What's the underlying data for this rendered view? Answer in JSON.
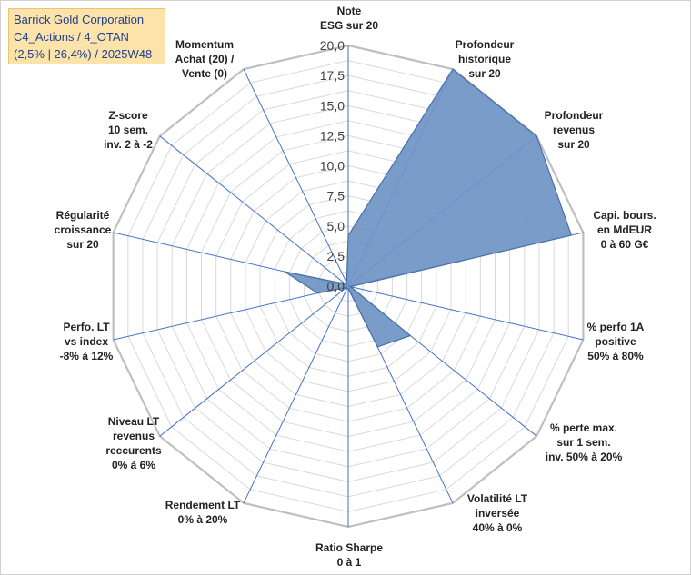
{
  "title_box": {
    "line1": "Barrick Gold Corporation",
    "line2": "C4_Actions / 4_OTAN",
    "line3": "(2,5% | 26,4%) / 2025W48"
  },
  "chart_data": {
    "type": "radar",
    "title": "Barrick Gold Corporation C4_Actions / 4_OTAN (2,5% | 26,4%) / 2025W48",
    "ylim": [
      0,
      20
    ],
    "tick_step": 2.5,
    "tick_labels": [
      "0,0",
      "2,5",
      "5,0",
      "7,5",
      "10,0",
      "12,5",
      "15,0",
      "17,5",
      "20,0"
    ],
    "grid_rings": 16,
    "fill_color": "#6f94c4",
    "line_color": "#4a6fa8",
    "axis_line_color": "#4472c4",
    "grid_color": "#d9d9d9",
    "categories": [
      {
        "line1": "Note",
        "line2": "ESG sur 20",
        "line3": ""
      },
      {
        "line1": "Profondeur",
        "line2": "historique",
        "line3": "sur 20"
      },
      {
        "line1": "Profondeur",
        "line2": "revenus",
        "line3": "sur 20"
      },
      {
        "line1": "Capi. bours.",
        "line2": "en MdEUR",
        "line3": "0 à 60 G€"
      },
      {
        "line1": "% perfo 1A",
        "line2": "positive",
        "line3": "50% à 80%"
      },
      {
        "line1": "% perte max.",
        "line2": "sur 1 sem.",
        "line3": "inv. 50% à 20%"
      },
      {
        "line1": "Volatilité LT",
        "line2": "inversée",
        "line3": "40% à 0%"
      },
      {
        "line1": "Ratio Sharpe",
        "line2": "0 à 1",
        "line3": ""
      },
      {
        "line1": "Rendement LT",
        "line2": "0% à 20%",
        "line3": ""
      },
      {
        "line1": "Niveau LT",
        "line2": "revenus",
        "line3": "reccurents",
        "line4": "0% à 6%"
      },
      {
        "line1": "Perfo. LT",
        "line2": "vs index",
        "line3": "-8% à 12%"
      },
      {
        "line1": "Régularité",
        "line2": "croissance",
        "line3": "sur 20"
      },
      {
        "line1": "Z-score",
        "line2": "10 sem.",
        "line3": "inv. 2 à -2"
      },
      {
        "line1": "Momentum",
        "line2": "Achat (20) /",
        "line3": "Vente (0)"
      }
    ],
    "series": [
      {
        "name": "Barrick Gold Corporation",
        "values": [
          4.2,
          20.0,
          20.0,
          19.0,
          0.2,
          6.6,
          5.6,
          0.2,
          0.2,
          0.2,
          2.6,
          5.4,
          0.3,
          0.3
        ]
      }
    ]
  }
}
